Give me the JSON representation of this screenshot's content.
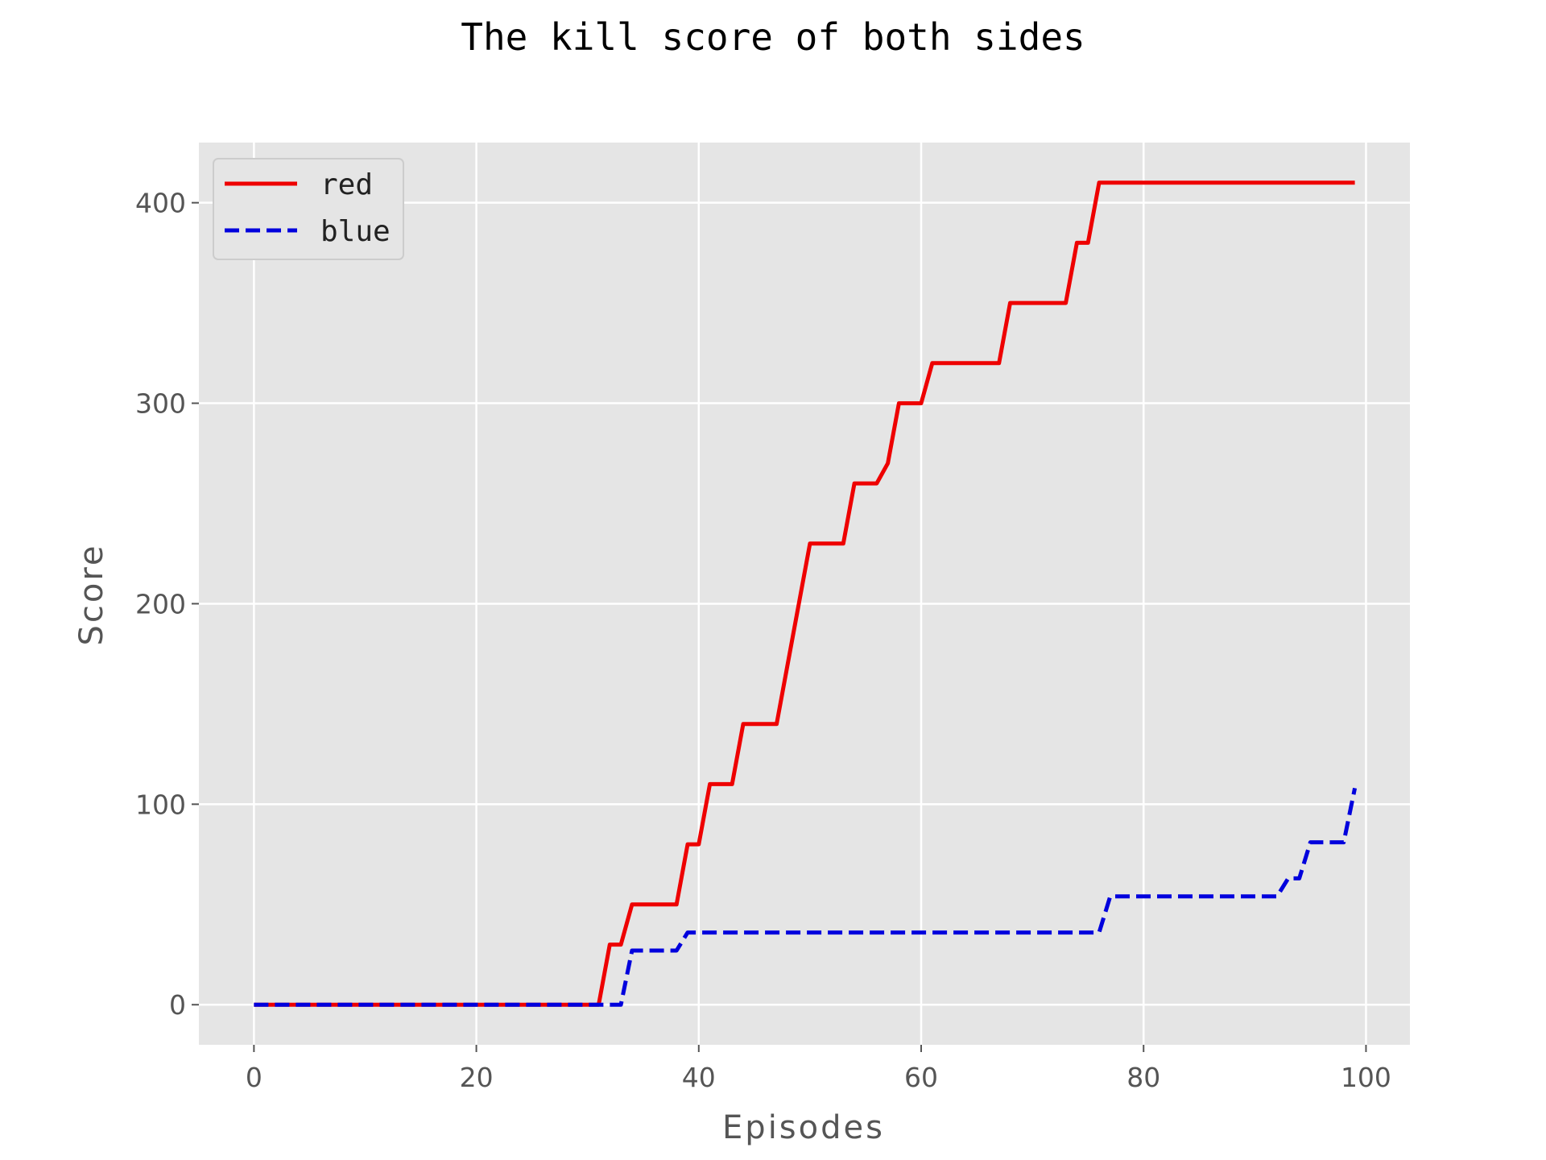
{
  "chart_data": {
    "type": "line",
    "title": "The kill score of both sides",
    "xlabel": "Episodes",
    "ylabel": "Score",
    "xlim": [
      -4.95,
      103.95
    ],
    "ylim": [
      -20,
      430
    ],
    "xticks": [
      0,
      20,
      40,
      60,
      80,
      100
    ],
    "yticks": [
      0,
      100,
      200,
      300,
      400
    ],
    "xtick_labels": [
      "0",
      "20",
      "40",
      "60",
      "80",
      "100"
    ],
    "ytick_labels": [
      "0",
      "100",
      "200",
      "300",
      "400"
    ],
    "grid": true,
    "legend_position": "top-left",
    "background": "#e5e5e5",
    "series": [
      {
        "name": "red",
        "color": "#ee0000",
        "style": "solid",
        "x": [
          0,
          31,
          32,
          33,
          34,
          35,
          38,
          39,
          40,
          41,
          42,
          43,
          44,
          45,
          47,
          48,
          49,
          50,
          53,
          54,
          56,
          57,
          58,
          60,
          61,
          67,
          68,
          73,
          74,
          75,
          76,
          99
        ],
        "y": [
          0,
          0,
          30,
          30,
          50,
          50,
          50,
          80,
          80,
          110,
          110,
          110,
          140,
          140,
          140,
          170,
          200,
          230,
          230,
          260,
          260,
          270,
          300,
          300,
          320,
          320,
          350,
          350,
          380,
          380,
          410,
          410
        ]
      },
      {
        "name": "blue",
        "color": "#0000dd",
        "style": "dashed",
        "x": [
          0,
          33,
          34,
          35,
          38,
          39,
          40,
          76,
          77,
          78,
          92,
          93,
          94,
          95,
          96,
          98,
          99
        ],
        "y": [
          0,
          0,
          27,
          27,
          27,
          36,
          36,
          36,
          54,
          54,
          54,
          63,
          63,
          81,
          81,
          81,
          108
        ]
      }
    ]
  }
}
